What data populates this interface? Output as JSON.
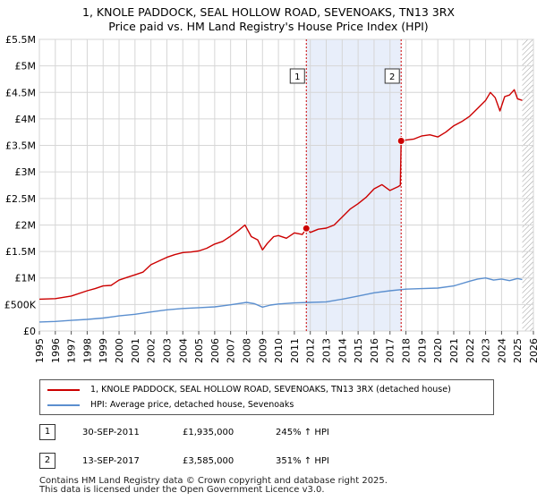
{
  "title_line1": "1, KNOLE PADDOCK, SEAL HOLLOW ROAD, SEVENOAKS, TN13 3RX",
  "title_line2": "Price paid vs. HM Land Registry's House Price Index (HPI)",
  "chart_data": {
    "type": "line",
    "x_range": [
      1995,
      2026
    ],
    "ylim": [
      0,
      5500000
    ],
    "y_ticks": [
      0,
      500000,
      1000000,
      1500000,
      2000000,
      2500000,
      3000000,
      3500000,
      4000000,
      4500000,
      5000000,
      5500000
    ],
    "y_tick_labels": [
      "£0",
      "£500K",
      "£1M",
      "£1.5M",
      "£2M",
      "£2.5M",
      "£3M",
      "£3.5M",
      "£4M",
      "£4.5M",
      "£5M",
      "£5.5M"
    ],
    "x_ticks": [
      1995,
      1996,
      1997,
      1998,
      1999,
      2000,
      2001,
      2002,
      2003,
      2004,
      2005,
      2006,
      2007,
      2008,
      2009,
      2010,
      2011,
      2012,
      2013,
      2014,
      2015,
      2016,
      2017,
      2018,
      2019,
      2020,
      2021,
      2022,
      2023,
      2024,
      2025,
      2026
    ],
    "x_tick_labels": [
      "1995",
      "1996",
      "1997",
      "1998",
      "1999",
      "2000",
      "2001",
      "2002",
      "2003",
      "2004",
      "2005",
      "2006",
      "2007",
      "2008",
      "2009",
      "2010",
      "2011",
      "2012",
      "2013",
      "2014",
      "2015",
      "2016",
      "2017",
      "2018",
      "2019",
      "2020",
      "2021",
      "2022",
      "2023",
      "2024",
      "2025",
      "2026"
    ],
    "grid": true,
    "shaded_region": [
      2011.75,
      2017.7
    ],
    "future_hatch_from": 2025.3,
    "series": [
      {
        "name": "1, KNOLE PADDOCK, SEAL HOLLOW ROAD, SEVENOAKS, TN13 3RX (detached house)",
        "color": "#cc0000",
        "x": [
          1995.0,
          1996.0,
          1997.0,
          1998.0,
          1998.5,
          1999.0,
          1999.5,
          2000.0,
          2000.5,
          2001.0,
          2001.5,
          2002.0,
          2002.5,
          2003.0,
          2003.5,
          2004.0,
          2004.5,
          2005.0,
          2005.5,
          2006.0,
          2006.5,
          2007.0,
          2007.5,
          2007.9,
          2008.3,
          2008.7,
          2009.0,
          2009.3,
          2009.7,
          2010.0,
          2010.5,
          2011.0,
          2011.5,
          2011.75,
          2012.0,
          2012.5,
          2013.0,
          2013.5,
          2014.0,
          2014.5,
          2015.0,
          2015.5,
          2016.0,
          2016.5,
          2017.0,
          2017.5,
          2017.65,
          2017.7,
          2018.0,
          2018.5,
          2019.0,
          2019.5,
          2020.0,
          2020.5,
          2021.0,
          2021.5,
          2022.0,
          2022.5,
          2023.0,
          2023.3,
          2023.6,
          2023.9,
          2024.2,
          2024.5,
          2024.8,
          2025.0,
          2025.3
        ],
        "values": [
          600000,
          610000,
          660000,
          760000,
          800000,
          850000,
          860000,
          960000,
          1010000,
          1060000,
          1110000,
          1250000,
          1320000,
          1390000,
          1440000,
          1480000,
          1490000,
          1510000,
          1560000,
          1640000,
          1690000,
          1790000,
          1900000,
          2000000,
          1780000,
          1720000,
          1530000,
          1650000,
          1780000,
          1800000,
          1750000,
          1850000,
          1820000,
          1935000,
          1860000,
          1920000,
          1940000,
          2000000,
          2150000,
          2300000,
          2400000,
          2520000,
          2680000,
          2760000,
          2650000,
          2720000,
          2750000,
          3585000,
          3600000,
          3620000,
          3680000,
          3700000,
          3660000,
          3750000,
          3870000,
          3950000,
          4050000,
          4200000,
          4350000,
          4500000,
          4400000,
          4150000,
          4420000,
          4450000,
          4550000,
          4380000,
          4350000
        ]
      },
      {
        "name": "HPI: Average price, detached house, Sevenoaks",
        "color": "#5b8fcf",
        "x": [
          1995.0,
          1996.0,
          1997.0,
          1998.0,
          1999.0,
          2000.0,
          2001.0,
          2002.0,
          2003.0,
          2004.0,
          2005.0,
          2006.0,
          2007.0,
          2008.0,
          2008.5,
          2009.0,
          2009.5,
          2010.0,
          2011.0,
          2012.0,
          2013.0,
          2014.0,
          2015.0,
          2016.0,
          2017.0,
          2018.0,
          2019.0,
          2020.0,
          2021.0,
          2022.0,
          2022.5,
          2023.0,
          2023.5,
          2024.0,
          2024.5,
          2025.0,
          2025.3
        ],
        "values": [
          170000,
          180000,
          200000,
          220000,
          245000,
          285000,
          315000,
          360000,
          400000,
          425000,
          440000,
          455000,
          495000,
          540000,
          515000,
          450000,
          490000,
          510000,
          530000,
          540000,
          550000,
          600000,
          660000,
          720000,
          760000,
          790000,
          800000,
          810000,
          850000,
          940000,
          980000,
          1000000,
          960000,
          980000,
          950000,
          990000,
          970000
        ]
      }
    ],
    "markers": [
      {
        "label": "1",
        "x": 2011.75,
        "y": 1935000
      },
      {
        "label": "2",
        "x": 2017.7,
        "y": 3585000
      }
    ]
  },
  "legend": {
    "red_label": "1, KNOLE PADDOCK, SEAL HOLLOW ROAD, SEVENOAKS, TN13 3RX (detached house)",
    "blue_label": "HPI: Average price, detached house, Sevenoaks"
  },
  "transactions": [
    {
      "label": "1",
      "date": "30-SEP-2011",
      "price": "£1,935,000",
      "hpi": "245% ↑ HPI"
    },
    {
      "label": "2",
      "date": "13-SEP-2017",
      "price": "£3,585,000",
      "hpi": "351% ↑ HPI"
    }
  ],
  "footer_line1": "Contains HM Land Registry data © Crown copyright and database right 2025.",
  "footer_line2": "This data is licensed under the Open Government Licence v3.0."
}
